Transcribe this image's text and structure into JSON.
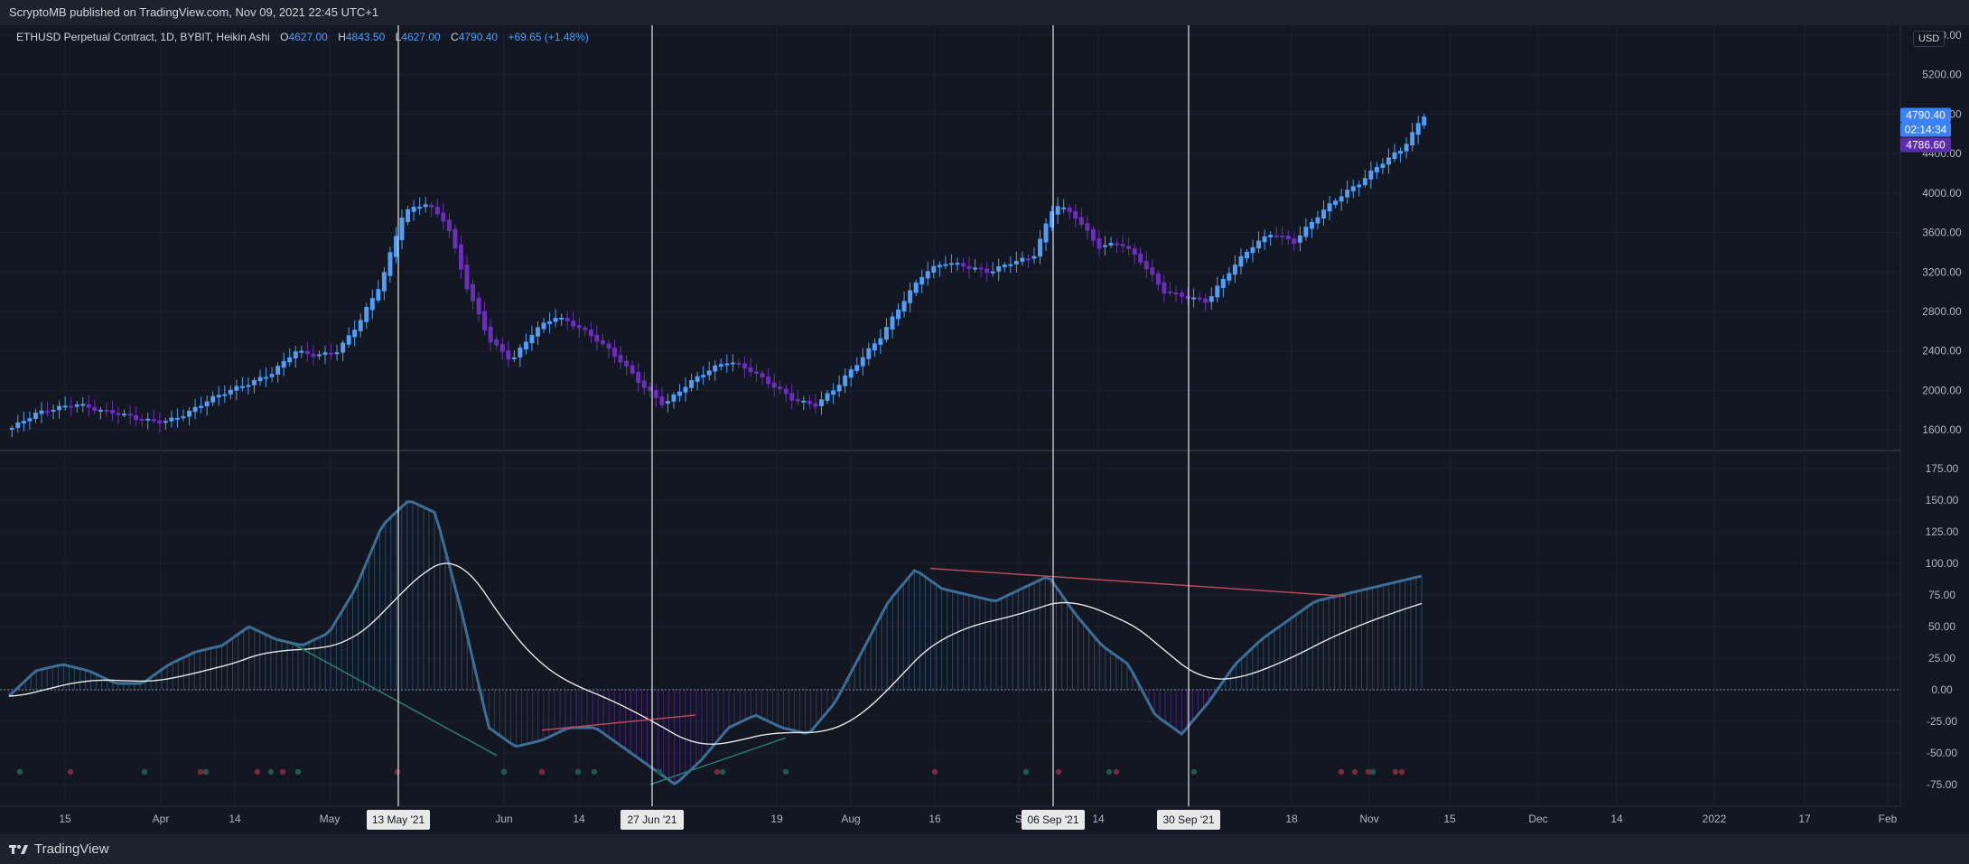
{
  "header": {
    "published": "ScryptoMB published on TradingView.com, Nov 09, 2021 22:45 UTC+1"
  },
  "legend": {
    "symbol": "ETHUSD Perpetual Contract, 1D, BYBIT, Heikin Ashi",
    "open_label": "O",
    "open": "4627.00",
    "high_label": "H",
    "high": "4843.50",
    "low_label": "L",
    "low": "4627.00",
    "close_label": "C",
    "close": "4790.40",
    "change": "+69.65 (+1.48%)"
  },
  "currency": "USD",
  "price_axis": {
    "ticks": [
      "5600.00",
      "5200.00",
      "4800.00",
      "4400.00",
      "4000.00",
      "3600.00",
      "3200.00",
      "2800.00",
      "2400.00",
      "2000.00",
      "1600.00"
    ]
  },
  "price_labels": {
    "last": "4790.40",
    "countdown": "02:14:34",
    "other": "4786.60"
  },
  "osc_axis": {
    "ticks": [
      "175.00",
      "150.00",
      "125.00",
      "100.00",
      "75.00",
      "50.00",
      "25.00",
      "0.00",
      "-25.00",
      "-50.00",
      "-75.00"
    ]
  },
  "time_axis": {
    "ticks": [
      "15",
      "Apr",
      "14",
      "May",
      "Jun",
      "14",
      "19",
      "Aug",
      "16",
      "S",
      "14",
      "18",
      "Nov",
      "15",
      "Dec",
      "14",
      "2022",
      "17",
      "Feb"
    ]
  },
  "markers": [
    "13 May '21",
    "27 Jun '21",
    "06 Sep '21",
    "30 Sep '21"
  ],
  "footer": {
    "brand": "TradingView"
  },
  "colors": {
    "up": "#4f9ef8",
    "down": "#6a2fb8",
    "osc_pos": "#3d6e96",
    "osc_neg": "#6a2fb8",
    "signal": "#e6e6e6",
    "bear_div": "#b84a55",
    "bull_div": "#2d7a6e"
  },
  "chart_data": {
    "type": "candlestick",
    "price_ylim": [
      1400,
      5700
    ],
    "close_series_approx": [
      1620,
      1760,
      1820,
      1860,
      1800,
      1760,
      1700,
      1680,
      1760,
      1900,
      2000,
      2080,
      2180,
      2400,
      2350,
      2400,
      2700,
      3100,
      3800,
      3900,
      3700,
      3000,
      2500,
      2300,
      2600,
      2750,
      2650,
      2500,
      2300,
      2050,
      1850,
      2050,
      2200,
      2300,
      2200,
      2050,
      1900,
      1850,
      2050,
      2300,
      2550,
      2900,
      3200,
      3300,
      3250,
      3200,
      3300,
      3350,
      3900,
      3750,
      3450,
      3500,
      3300,
      3000,
      2950,
      2900,
      3200,
      3450,
      3600,
      3500,
      3750,
      3950,
      4100,
      4300,
      4450,
      4790
    ],
    "osc_ylim": [
      -85,
      180
    ],
    "osc_series_approx": [
      -5,
      15,
      20,
      15,
      5,
      5,
      20,
      30,
      35,
      50,
      40,
      35,
      45,
      80,
      130,
      150,
      140,
      60,
      -30,
      -45,
      -40,
      -30,
      -30,
      -45,
      -60,
      -75,
      -55,
      -30,
      -20,
      -30,
      -35,
      -10,
      30,
      70,
      95,
      80,
      75,
      70,
      80,
      90,
      60,
      35,
      20,
      -20,
      -35,
      -10,
      20,
      40,
      55,
      70,
      75,
      80,
      85,
      90
    ]
  }
}
